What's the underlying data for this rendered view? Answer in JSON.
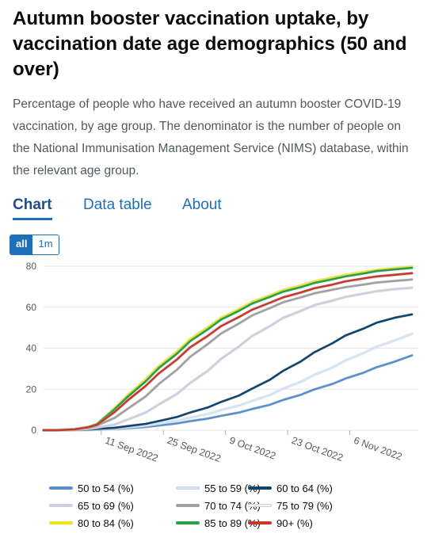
{
  "header": {
    "title": "Autumn booster vaccination uptake, by vaccination date age demographics (50 and over)",
    "description": "Percentage of people who have received an autumn booster COVID-19 vaccination, by age group. The denominator is the number of people on the National Immunisation Management Service (NIMS) database, within the relevant age group."
  },
  "tabs": [
    {
      "label": "Chart",
      "active": true
    },
    {
      "label": "Data table",
      "active": false
    },
    {
      "label": "About",
      "active": false
    }
  ],
  "range_buttons": [
    {
      "label": "all",
      "active": true
    },
    {
      "label": "1m",
      "active": false
    }
  ],
  "colors": {
    "accent": "#1d70b8",
    "grid": "#e6e6e6",
    "axis_text": "#505a5f"
  },
  "chart_data": {
    "type": "line",
    "title": "",
    "xlabel": "",
    "ylabel": "",
    "ylim": [
      0,
      80
    ],
    "yticks": [
      0,
      20,
      40,
      60,
      80
    ],
    "xlim": [
      "2022-08-29",
      "2022-11-20"
    ],
    "xticks": [
      {
        "date": "2022-09-11",
        "label": "11 Sep 2022"
      },
      {
        "date": "2022-09-25",
        "label": "25 Sep 2022"
      },
      {
        "date": "2022-10-09",
        "label": "9 Oct 2022"
      },
      {
        "date": "2022-10-23",
        "label": "23 Oct 2022"
      },
      {
        "date": "2022-11-06",
        "label": "6 Nov 2022"
      }
    ],
    "grid": true,
    "legend_position": "bottom",
    "x": [
      "2022-08-29",
      "2022-09-01",
      "2022-09-05",
      "2022-09-08",
      "2022-09-10",
      "2022-09-14",
      "2022-09-17",
      "2022-09-21",
      "2022-09-24",
      "2022-09-28",
      "2022-10-01",
      "2022-10-05",
      "2022-10-08",
      "2022-10-12",
      "2022-10-15",
      "2022-10-19",
      "2022-10-22",
      "2022-10-26",
      "2022-10-29",
      "2022-11-02",
      "2022-11-05",
      "2022-11-09",
      "2022-11-12",
      "2022-11-16",
      "2022-11-20"
    ],
    "series": [
      {
        "name": "50 to 54 (%)",
        "color": "#5b8fc7",
        "values": [
          0,
          0,
          0.1,
          0.2,
          0.3,
          0.6,
          1.0,
          1.6,
          2.3,
          3.3,
          4.4,
          5.7,
          7.0,
          8.6,
          10.3,
          12.4,
          14.8,
          17.3,
          19.9,
          22.5,
          25.2,
          28.0,
          30.7,
          33.4,
          36.5
        ]
      },
      {
        "name": "55 to 59 (%)",
        "color": "#d5e4f3",
        "values": [
          0,
          0,
          0.1,
          0.2,
          0.4,
          0.8,
          1.4,
          2.2,
          3.2,
          4.6,
          6.1,
          7.9,
          9.8,
          12.0,
          14.3,
          17.2,
          20.3,
          23.6,
          27.0,
          30.5,
          34.0,
          37.5,
          40.7,
          43.7,
          47.0
        ]
      },
      {
        "name": "60 to 64 (%)",
        "color": "#12436d",
        "values": [
          0,
          0,
          0.1,
          0.3,
          0.6,
          1.2,
          2.0,
          3.1,
          4.5,
          6.4,
          8.6,
          11.1,
          13.8,
          16.9,
          20.3,
          24.6,
          29.0,
          33.6,
          38.0,
          42.3,
          46.2,
          49.5,
          52.4,
          54.8,
          56.5
        ]
      },
      {
        "name": "65 to 69 (%)",
        "color": "#c8d1dd",
        "values": [
          0,
          0,
          0.2,
          0.6,
          1.2,
          2.8,
          5.2,
          8.6,
          12.6,
          17.6,
          23.0,
          29.0,
          34.8,
          40.8,
          46.0,
          50.8,
          54.8,
          58.2,
          61.0,
          63.2,
          65.0,
          66.6,
          67.8,
          68.8,
          69.5
        ]
      },
      {
        "name": "70 to 74 (%)",
        "color": "#a0a0a0",
        "values": [
          0,
          0,
          0.3,
          1.0,
          2.2,
          6.0,
          10.5,
          16.5,
          22.6,
          29.4,
          35.8,
          42.0,
          47.2,
          52.0,
          56.0,
          59.6,
          62.4,
          64.8,
          66.8,
          68.5,
          69.8,
          71.0,
          72.0,
          72.8,
          73.5
        ]
      },
      {
        "name": "75 to 79 (%)",
        "color": "#f3f3f3",
        "values": [
          0,
          0,
          0.4,
          1.4,
          2.8,
          9.0,
          14.6,
          21.4,
          27.8,
          34.8,
          40.8,
          46.6,
          51.2,
          55.4,
          58.8,
          62.2,
          64.8,
          67.0,
          69.0,
          70.8,
          72.2,
          73.6,
          74.8,
          75.8,
          76.5
        ]
      },
      {
        "name": "80 to 84 (%)",
        "color": "#f0e51f",
        "values": [
          0,
          0,
          0.5,
          1.6,
          3.0,
          10.8,
          17.2,
          24.8,
          31.4,
          38.2,
          44.4,
          50.2,
          54.8,
          59.0,
          62.6,
          65.8,
          68.4,
          70.6,
          72.6,
          74.4,
          75.8,
          77.2,
          78.2,
          79.0,
          79.8
        ]
      },
      {
        "name": "85 to 89 (%)",
        "color": "#28a04a",
        "values": [
          0,
          0,
          0.5,
          1.5,
          2.9,
          10.2,
          16.4,
          23.8,
          30.4,
          37.2,
          43.4,
          49.2,
          54.0,
          58.2,
          61.8,
          65.0,
          67.6,
          69.8,
          71.8,
          73.6,
          75.0,
          76.4,
          77.6,
          78.4,
          79.2
        ]
      },
      {
        "name": "90+ (%)",
        "color": "#c8382c",
        "values": [
          0,
          0,
          0.4,
          1.4,
          2.6,
          8.8,
          14.6,
          21.6,
          27.8,
          34.4,
          40.4,
          46.0,
          50.8,
          55.2,
          58.8,
          62.2,
          64.8,
          67.2,
          69.2,
          71.0,
          72.6,
          74.0,
          75.0,
          75.8,
          76.6
        ]
      }
    ]
  }
}
